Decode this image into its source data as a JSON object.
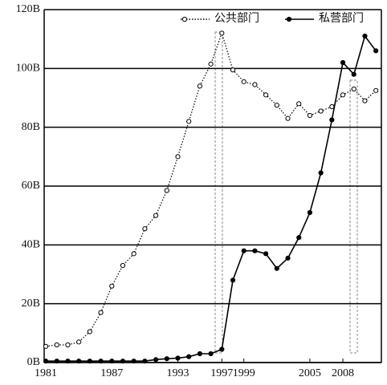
{
  "chart_data": {
    "type": "line",
    "x": [
      1981,
      1982,
      1983,
      1984,
      1985,
      1986,
      1987,
      1988,
      1989,
      1990,
      1991,
      1992,
      1993,
      1994,
      1995,
      1996,
      1997,
      1998,
      1999,
      2000,
      2001,
      2002,
      2003,
      2004,
      2005,
      2006,
      2007,
      2008,
      2009,
      2010,
      2011
    ],
    "series": [
      {
        "name": "公共部门",
        "color": "#000000",
        "linestyle": "dotted",
        "marker": "open",
        "values": [
          5.5,
          6,
          6,
          7,
          10.5,
          17,
          26,
          33,
          37,
          45.5,
          50,
          58.5,
          70,
          82,
          94,
          101.5,
          112,
          99.5,
          95.5,
          94.5,
          91,
          87.5,
          83,
          88,
          84,
          85.5,
          87,
          91,
          93,
          89,
          92.5
        ]
      },
      {
        "name": "私营部门",
        "color": "#000000",
        "linestyle": "solid",
        "marker": "filled",
        "values": [
          0.5,
          0.5,
          0.5,
          0.5,
          0.5,
          0.5,
          0.5,
          0.5,
          0.5,
          0.5,
          1,
          1.3,
          1.5,
          2,
          3,
          3,
          4.5,
          28,
          38,
          38,
          37,
          32,
          35.5,
          42.5,
          51,
          64.5,
          82.5,
          102,
          98,
          111,
          106
        ]
      }
    ],
    "xlim": [
      1980.85,
      2011.5
    ],
    "xticks": [
      1981,
      1987,
      1993,
      1997,
      1999,
      2005,
      2008
    ],
    "ylim": [
      0,
      120
    ],
    "yticks": [
      {
        "value": 0,
        "label": "0B"
      },
      {
        "value": 20,
        "label": "20B"
      },
      {
        "value": 40,
        "label": "40B"
      },
      {
        "value": 60,
        "label": "60B"
      },
      {
        "value": 80,
        "label": "80B"
      },
      {
        "value": 100,
        "label": "100B"
      },
      {
        "value": 120,
        "label": "120B"
      }
    ],
    "grid": true,
    "legend": "upper right"
  }
}
